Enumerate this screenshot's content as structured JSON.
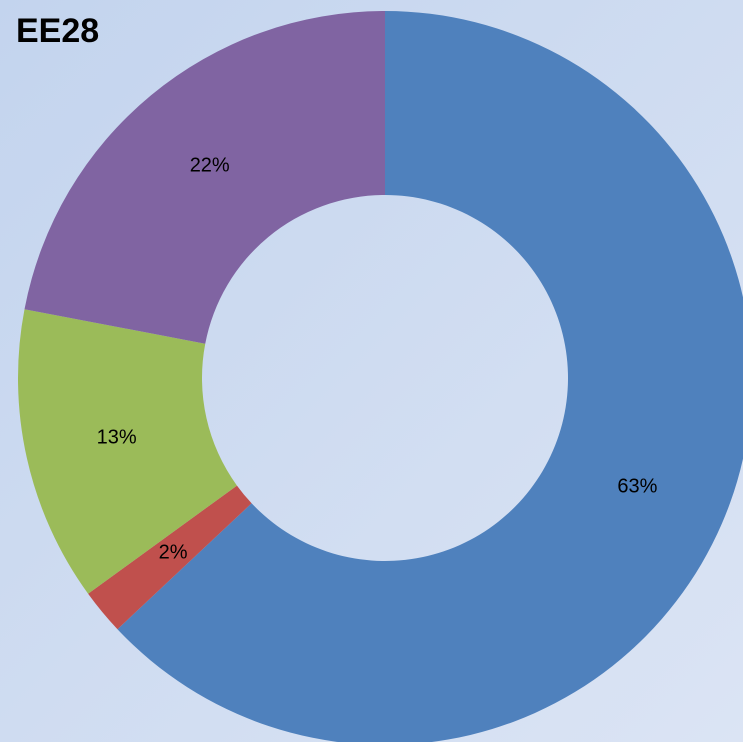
{
  "chart_data": {
    "type": "donut",
    "title": "EE28",
    "values": [
      63,
      2,
      13,
      22
    ],
    "value_labels": [
      "63%",
      "2%",
      "13%",
      "22%"
    ],
    "colors": [
      "#4f81bd",
      "#c0504d",
      "#9bbb59",
      "#8064a2"
    ]
  }
}
